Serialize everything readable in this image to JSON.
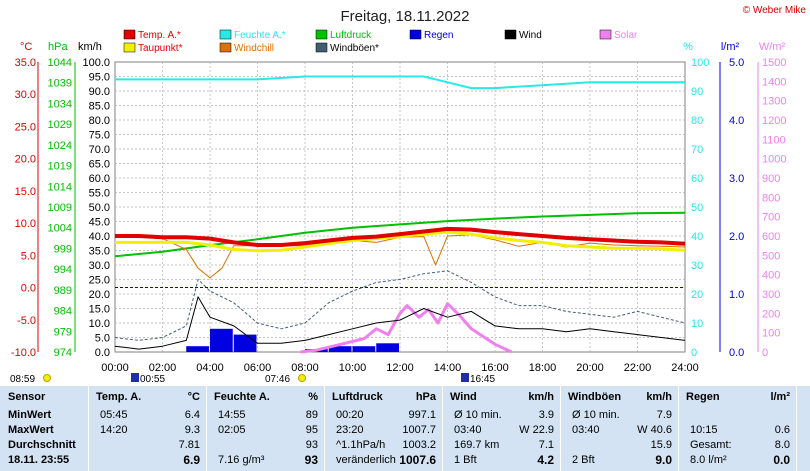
{
  "title": "Freitag, 18.11.2022",
  "credit": "© Weber Mike",
  "legend": [
    {
      "label": "Temp. A.*",
      "color": "#e00000"
    },
    {
      "label": "Feuchte A.*",
      "color": "#28e8e8"
    },
    {
      "label": "Luftdruck",
      "color": "#00c000"
    },
    {
      "label": "Regen",
      "color": "#0000e0"
    },
    {
      "label": "Wind",
      "color": "#000000"
    },
    {
      "label": "Solar",
      "color": "#f080f0"
    },
    {
      "label": "Taupunkt*",
      "color": "#f0f000"
    },
    {
      "label": "Windchill",
      "color": "#e07000"
    },
    {
      "label": "Windböen*",
      "color": "#406070"
    }
  ],
  "units": {
    "temp": "°C",
    "pressure": "hPa",
    "wind": "km/h",
    "humidity": "%",
    "rain": "l/m²",
    "solar": "W/m²"
  },
  "axes": {
    "temp_ticks": [
      "35.0",
      "30.0",
      "25.0",
      "20.0",
      "15.0",
      "10.0",
      "5.0",
      "0.0",
      "-5.0",
      "-10.0"
    ],
    "pressure_ticks": [
      "1044",
      "1039",
      "1034",
      "1029",
      "1024",
      "1019",
      "1014",
      "1009",
      "1004",
      "999",
      "994",
      "989",
      "984",
      "979",
      "974"
    ],
    "wind_ticks": [
      "100.0",
      "95.0",
      "90.0",
      "85.0",
      "80.0",
      "75.0",
      "70.0",
      "65.0",
      "60.0",
      "55.0",
      "50.0",
      "45.0",
      "40.0",
      "35.0",
      "30.0",
      "25.0",
      "20.0",
      "15.0",
      "10.0",
      "5.0",
      "0.0"
    ],
    "humidity_ticks": [
      "100",
      "90",
      "80",
      "70",
      "60",
      "50",
      "40",
      "30",
      "20",
      "10",
      "0"
    ],
    "rain_ticks": [
      "5.0",
      "4.0",
      "3.0",
      "2.0",
      "1.0",
      "0.0"
    ],
    "solar_ticks": [
      "1500",
      "1400",
      "1300",
      "1200",
      "1100",
      "1000",
      "900",
      "800",
      "700",
      "600",
      "500",
      "400",
      "300",
      "200",
      "100",
      "0"
    ],
    "time_ticks": [
      "00:00",
      "02:00",
      "04:00",
      "06:00",
      "08:00",
      "10:00",
      "12:00",
      "14:00",
      "16:00",
      "18:00",
      "20:00",
      "22:00",
      "24:00"
    ]
  },
  "sun": {
    "sunrise_label": "07:46",
    "sunset_label": "16:45",
    "moonrise_label": "00:55",
    "daylight_label": "08:59"
  },
  "chart_data": {
    "type": "line",
    "title": "Freitag, 18.11.2022",
    "x_range": [
      "00:00",
      "24:00"
    ],
    "series": [
      {
        "name": "Temp. A.*",
        "unit": "°C",
        "x": [
          0,
          1,
          2,
          3,
          4,
          5,
          6,
          7,
          8,
          9,
          10,
          11,
          12,
          13,
          14,
          15,
          16,
          17,
          18,
          19,
          20,
          21,
          22,
          23,
          24
        ],
        "values": [
          8.0,
          8.0,
          7.8,
          7.8,
          7.6,
          7.0,
          6.6,
          6.6,
          6.9,
          7.3,
          7.7,
          7.9,
          8.3,
          8.7,
          9.1,
          9.0,
          8.6,
          8.3,
          8.0,
          7.7,
          7.5,
          7.3,
          7.1,
          7.0,
          6.8
        ]
      },
      {
        "name": "Taupunkt*",
        "unit": "°C",
        "x": [
          0,
          1,
          2,
          3,
          4,
          5,
          6,
          7,
          8,
          9,
          10,
          11,
          12,
          13,
          14,
          15,
          16,
          17,
          18,
          19,
          20,
          21,
          22,
          23,
          24
        ],
        "values": [
          7.0,
          7.0,
          7.0,
          7.0,
          6.6,
          5.9,
          5.7,
          5.8,
          6.3,
          6.8,
          7.3,
          7.6,
          7.9,
          8.3,
          8.6,
          8.3,
          7.7,
          7.3,
          7.0,
          6.5,
          6.3,
          6.1,
          6.1,
          6.0,
          5.8
        ]
      },
      {
        "name": "Windchill",
        "unit": "°C",
        "x": [
          0,
          1,
          2,
          3,
          3.5,
          4,
          4.5,
          5,
          6,
          8,
          9,
          10,
          11,
          12,
          13,
          13.5,
          14,
          15,
          16,
          17,
          18,
          19,
          20,
          21,
          22,
          23,
          24
        ],
        "values": [
          7.9,
          7.8,
          7.6,
          5.9,
          3.0,
          1.5,
          3.0,
          6.5,
          6.5,
          6.5,
          7.0,
          7.3,
          7.0,
          7.8,
          7.9,
          3.5,
          8.0,
          8.2,
          7.4,
          6.4,
          7.0,
          6.3,
          6.9,
          6.6,
          6.5,
          6.4,
          6.3
        ]
      },
      {
        "name": "Feuchte A.*",
        "unit": "%",
        "x": [
          0,
          2,
          4,
          6,
          8,
          10,
          12,
          13,
          14,
          15,
          16,
          18,
          20,
          22,
          24
        ],
        "values": [
          94,
          94,
          94,
          94,
          95,
          95,
          95,
          95,
          93,
          91,
          91,
          92,
          93,
          93,
          93
        ]
      },
      {
        "name": "Luftdruck",
        "unit": "hPa",
        "x": [
          0,
          2,
          4,
          6,
          8,
          10,
          12,
          14,
          16,
          18,
          20,
          22,
          24
        ],
        "values": [
          997.1,
          998.2,
          999.8,
          1001.2,
          1002.8,
          1004.0,
          1004.8,
          1005.6,
          1006.2,
          1006.7,
          1007.1,
          1007.5,
          1007.6
        ]
      },
      {
        "name": "Wind",
        "unit": "km/h",
        "x": [
          0,
          1,
          2,
          3,
          3.5,
          4,
          5,
          6,
          7,
          8,
          9,
          10,
          11,
          12,
          13,
          14,
          15,
          16,
          17,
          18,
          19,
          20,
          21,
          22,
          23,
          24
        ],
        "values": [
          2,
          1,
          2,
          4,
          19,
          12,
          9,
          3,
          3,
          4,
          6,
          8,
          10,
          11,
          15,
          12,
          14,
          9,
          8,
          8,
          7,
          8,
          7,
          6,
          5,
          4
        ]
      },
      {
        "name": "Windböen*",
        "unit": "km/h",
        "x": [
          0,
          1,
          2,
          3,
          3.5,
          4,
          5,
          6,
          7,
          8,
          9,
          10,
          11,
          12,
          13,
          14,
          15,
          16,
          17,
          18,
          19,
          20,
          21,
          22,
          23,
          24
        ],
        "values": [
          5,
          4,
          5,
          9,
          25,
          21,
          17,
          10,
          8,
          10,
          17,
          21,
          24,
          25,
          27,
          28,
          24,
          19,
          16,
          16,
          14,
          13,
          12,
          14,
          12,
          10
        ]
      },
      {
        "name": "Solar",
        "unit": "W/m²",
        "x": [
          7.8,
          8.5,
          9,
          9.5,
          10,
          10.5,
          11,
          11.5,
          12,
          12.3,
          12.8,
          13.2,
          13.6,
          14,
          14.5,
          15,
          15.5,
          16,
          16.7
        ],
        "values": [
          0,
          10,
          25,
          40,
          55,
          70,
          120,
          90,
          200,
          240,
          180,
          220,
          150,
          250,
          190,
          120,
          80,
          40,
          0
        ]
      },
      {
        "name": "Regen",
        "unit": "l/m²",
        "x": [
          0,
          1,
          2,
          3,
          4,
          5,
          6,
          7,
          8,
          9,
          10,
          11,
          12,
          13,
          14,
          15,
          16,
          17,
          18,
          19,
          20,
          21,
          22,
          23
        ],
        "values": [
          0,
          0,
          0,
          0.1,
          0.4,
          0.3,
          0,
          0,
          0.05,
          0.1,
          0.1,
          0.15,
          0,
          0,
          0,
          0,
          0,
          0,
          0,
          0,
          0,
          0,
          0,
          0
        ]
      }
    ]
  },
  "stats": {
    "headers": {
      "sensor": "Sensor",
      "temp": "Temp. A.",
      "temp_unit": "°C",
      "hum": "Feuchte A.",
      "hum_unit": "%",
      "press": "Luftdruck",
      "press_unit": "hPa",
      "wind": "Wind",
      "wind_unit": "km/h",
      "gust": "Windböen",
      "gust_unit": "km/h",
      "rain": "Regen",
      "rain_unit": "l/m²"
    },
    "rows": [
      {
        "label": "MinWert",
        "temp_time": "05:45",
        "temp_val": "6.4",
        "hum_time": "14:55",
        "hum_val": "89",
        "press_time": "00:20",
        "press_val": "997.1",
        "wind_time": "Ø 10 min.",
        "wind_val": "3.9",
        "gust_time": "Ø 10 min.",
        "gust_val": "7.9",
        "rain_time": "",
        "rain_val": ""
      },
      {
        "label": "MaxWert",
        "temp_time": "14:20",
        "temp_val": "9.3",
        "hum_time": "02:05",
        "hum_val": "95",
        "press_time": "23:20",
        "press_val": "1007.7",
        "wind_time": "03:40",
        "wind_val": "W 22.9",
        "gust_time": "03:40",
        "gust_val": "W 40.6",
        "rain_time": "10:15",
        "rain_val": "0.6"
      },
      {
        "label": "Durchschnitt",
        "temp_time": "",
        "temp_val": "7.81",
        "hum_time": "",
        "hum_val": "93",
        "press_time": "^1.1hPa/h",
        "press_val": "1003.2",
        "wind_time": "169.7 km",
        "wind_val": "7.1",
        "gust_time": "",
        "gust_val": "15.9",
        "rain_time": "Gesamt:",
        "rain_val": "8.0"
      },
      {
        "label": "18.11. 23:55",
        "temp_time": "",
        "temp_val": "6.9",
        "hum_time": "7.16 g/m³",
        "hum_val": "93",
        "press_time": "veränderlich",
        "press_val": "1007.6",
        "wind_time": "1 Bft",
        "wind_val": "4.2",
        "gust_time": "2 Bft",
        "gust_val": "9.0",
        "rain_time": "8.0 l/m²",
        "rain_val": "0.0"
      }
    ]
  }
}
